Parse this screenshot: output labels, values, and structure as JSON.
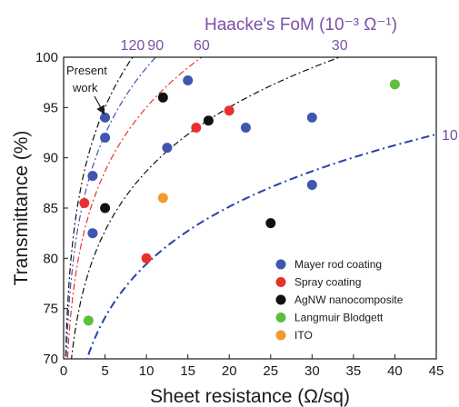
{
  "chart_data": {
    "type": "scatter",
    "title": "",
    "top_axis_title": "Haacke's FoM (10⁻³ Ω⁻¹)",
    "xlabel": "Sheet resistance (Ω/sq)",
    "ylabel": "Transmittance (%)",
    "xlim": [
      0,
      45
    ],
    "ylim": [
      70,
      100
    ],
    "x_ticks": [
      "0",
      "5",
      "10",
      "15",
      "20",
      "25",
      "30",
      "35",
      "40",
      "45"
    ],
    "y_ticks": [
      "70",
      "75",
      "80",
      "85",
      "90",
      "95",
      "100"
    ],
    "legend_position": "lower-right",
    "series": [
      {
        "name": "Mayer rod coating",
        "color": "#3f55b0",
        "points": [
          [
            3.5,
            82.5
          ],
          [
            3.5,
            88.2
          ],
          [
            5,
            92
          ],
          [
            5,
            94
          ],
          [
            12.5,
            91
          ],
          [
            15,
            97.7
          ],
          [
            22,
            93
          ],
          [
            30,
            94
          ],
          [
            30,
            87.3
          ]
        ]
      },
      {
        "name": "Spray coating",
        "color": "#e8312f",
        "points": [
          [
            2.5,
            85.5
          ],
          [
            10,
            80
          ],
          [
            16,
            93
          ],
          [
            20,
            94.7
          ]
        ]
      },
      {
        "name": "AgNW nanocomposite",
        "color": "#111111",
        "points": [
          [
            5,
            85
          ],
          [
            12,
            96
          ],
          [
            17.5,
            93.7
          ],
          [
            25,
            83.5
          ]
        ]
      },
      {
        "name": "Langmuir Blodgett",
        "color": "#5cbf3f",
        "points": [
          [
            3,
            73.8
          ],
          [
            40,
            97.3
          ]
        ]
      },
      {
        "name": "ITO",
        "color": "#f29a2e",
        "points": [
          [
            12,
            86
          ]
        ]
      }
    ],
    "fom_curves": [
      {
        "label": "120",
        "fom": 120,
        "color": "#111111",
        "style": "dashdot"
      },
      {
        "label": "90",
        "fom": 90,
        "color": "#3f55b0",
        "style": "dashdot"
      },
      {
        "label": "60",
        "fom": 60,
        "color": "#e8312f",
        "style": "dashdot"
      },
      {
        "label": "30",
        "fom": 30,
        "color": "#111111",
        "style": "dashdot"
      },
      {
        "label": "10",
        "fom": 10,
        "color": "#2a3fa8",
        "style": "dashdot-bold"
      }
    ],
    "annotation": {
      "line1": "Present",
      "line2": "work"
    }
  }
}
